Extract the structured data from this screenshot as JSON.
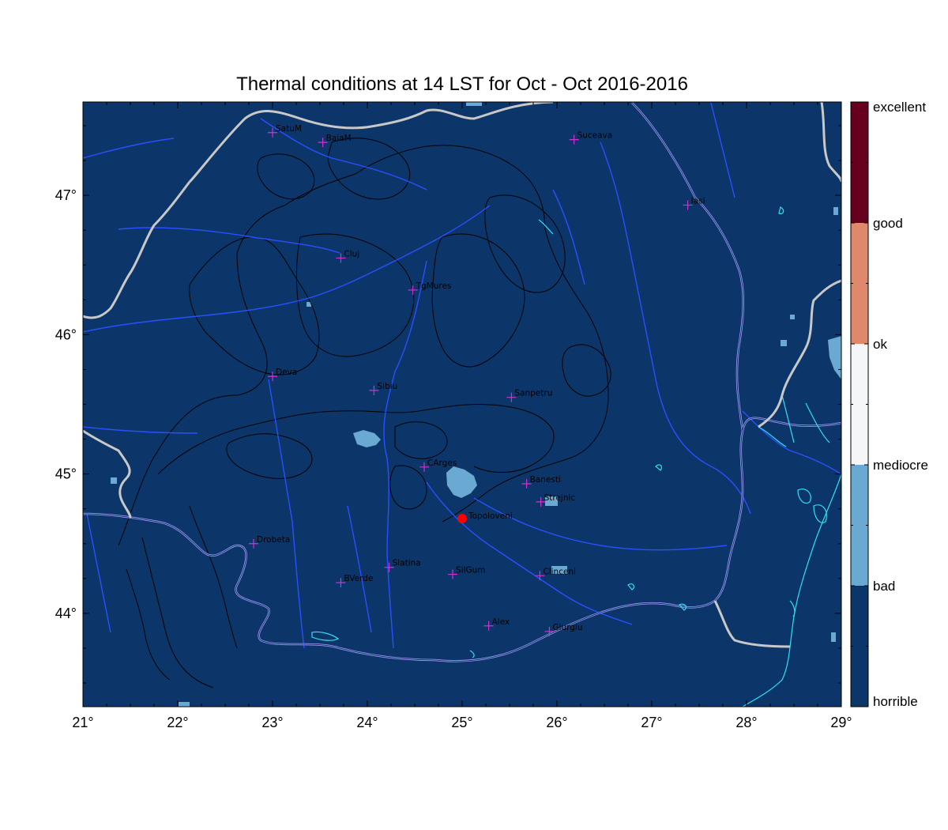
{
  "title": "Thermal conditions at 14 LST for Oct - Oct  2016-2016",
  "map": {
    "lon_range": [
      21,
      29
    ],
    "lat_range": [
      43.33,
      47.67
    ],
    "x_ticks": [
      {
        "lon": 21,
        "label": "21°"
      },
      {
        "lon": 22,
        "label": "22°"
      },
      {
        "lon": 23,
        "label": "23°"
      },
      {
        "lon": 24,
        "label": "24°"
      },
      {
        "lon": 25,
        "label": "25°"
      },
      {
        "lon": 26,
        "label": "26°"
      },
      {
        "lon": 27,
        "label": "27°"
      },
      {
        "lon": 28,
        "label": "28°"
      },
      {
        "lon": 29,
        "label": "29°"
      }
    ],
    "y_ticks": [
      {
        "lat": 44,
        "label": "44°"
      },
      {
        "lat": 45,
        "label": "45°"
      },
      {
        "lat": 46,
        "label": "46°"
      },
      {
        "lat": 47,
        "label": "47°"
      }
    ],
    "background_class": "horrible",
    "stations": [
      {
        "name": "SatuM",
        "lon": 23.0,
        "lat": 47.45
      },
      {
        "name": "BaiaM",
        "lon": 23.53,
        "lat": 47.38
      },
      {
        "name": "Suceava",
        "lon": 26.18,
        "lat": 47.4
      },
      {
        "name": "Iasi",
        "lon": 27.38,
        "lat": 46.93
      },
      {
        "name": "Cluj",
        "lon": 23.72,
        "lat": 46.55
      },
      {
        "name": "TgMures",
        "lon": 24.48,
        "lat": 46.32
      },
      {
        "name": "Deva",
        "lon": 23.0,
        "lat": 45.7
      },
      {
        "name": "Sibiu",
        "lon": 24.07,
        "lat": 45.6
      },
      {
        "name": "Sanpetru",
        "lon": 25.52,
        "lat": 45.55
      },
      {
        "name": "CArges",
        "lon": 24.6,
        "lat": 45.05
      },
      {
        "name": "Banesti",
        "lon": 25.68,
        "lat": 44.93
      },
      {
        "name": "Strejnic",
        "lon": 25.83,
        "lat": 44.8
      },
      {
        "name": "Drobeta",
        "lon": 22.8,
        "lat": 44.5
      },
      {
        "name": "Slatina",
        "lon": 24.23,
        "lat": 44.33
      },
      {
        "name": "SilGum",
        "lon": 24.9,
        "lat": 44.28
      },
      {
        "name": "Clinceni",
        "lon": 25.82,
        "lat": 44.27
      },
      {
        "name": "BVerde",
        "lon": 23.72,
        "lat": 44.22
      },
      {
        "name": "Alex",
        "lon": 25.28,
        "lat": 43.91
      },
      {
        "name": "Giurgiu",
        "lon": 25.92,
        "lat": 43.87
      }
    ],
    "highlight": {
      "name": "Topoloveni",
      "lon": 25.0,
      "lat": 44.68
    }
  },
  "colorbar": {
    "classes": [
      {
        "label": "excellent",
        "color": "#67001f"
      },
      {
        "label": "good",
        "color": "#e0886b"
      },
      {
        "label": "ok",
        "color": "#f5f6f7"
      },
      {
        "label": "mediocre",
        "color": "#6aaad2"
      },
      {
        "label": "bad",
        "color": "#0c3669"
      },
      {
        "label": "horrible",
        "color": "#0c3669"
      }
    ]
  },
  "colors": {
    "ocean_land_fill": "#0c3669",
    "border": "#c8c8c8",
    "river": "#2a4fff",
    "danube": "#a8a0ff",
    "coast": "#30e0f0",
    "contour": "#000000",
    "bad_patch": "#6aaad2",
    "station_marker": "#cc33cc",
    "highlight_marker": "#ff0000"
  }
}
